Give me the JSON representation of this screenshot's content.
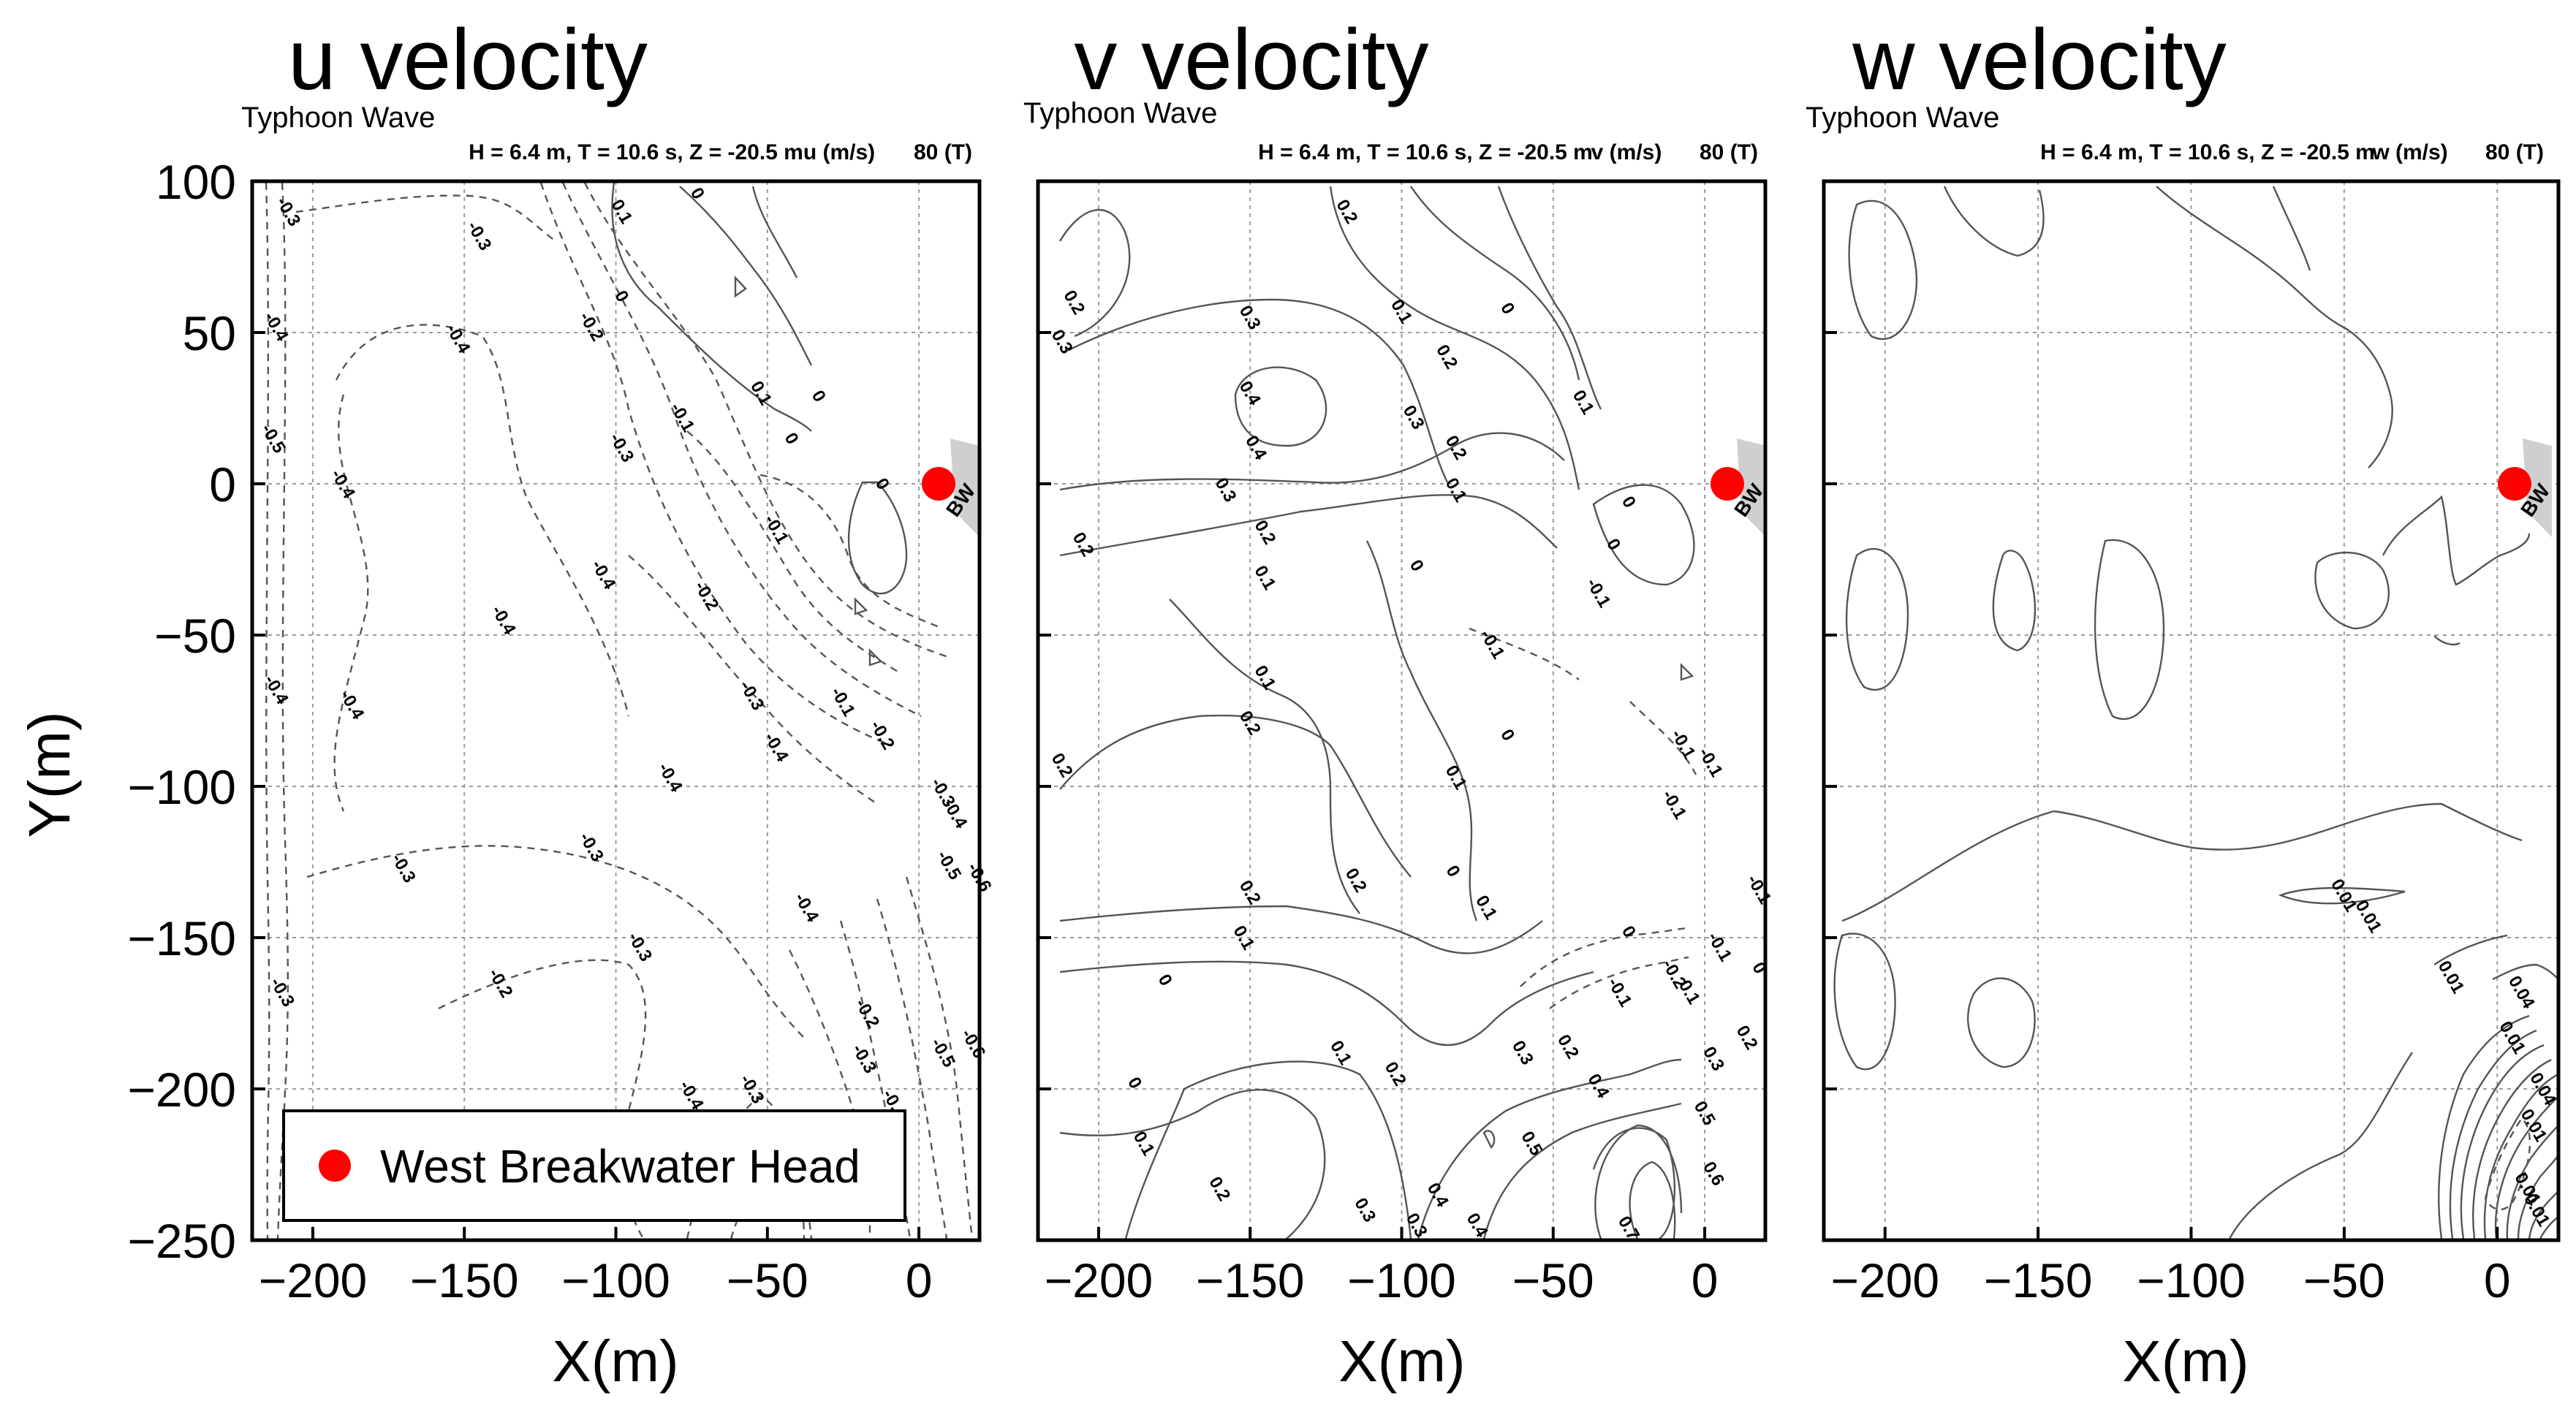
{
  "chart_data": [
    {
      "type": "contour",
      "title": "u velocity",
      "subtitle": "Typhoon Wave",
      "header": "H = 6.4 m,  T = 10.6 s,  Z = -20.5 m",
      "variable": "u (m/s)",
      "frame": "80 (T)",
      "xlabel": "X(m)",
      "ylabel": "Y(m)",
      "xlim": [
        -220,
        20
      ],
      "ylim": [
        -250,
        100
      ],
      "xticks": [
        -200,
        -150,
        -100,
        -50,
        0
      ],
      "yticks": [
        100,
        50,
        0,
        -50,
        -100,
        -150,
        -200,
        -250
      ],
      "xtick_labels": [
        "−200",
        "−150",
        "−100",
        "−50",
        "0"
      ],
      "ytick_labels": [
        "100",
        "50",
        "0",
        "−50",
        "−100",
        "−150",
        "−200",
        "−250"
      ],
      "marker_label": "BW",
      "contour_labels": [
        {
          "text": "-0.3",
          "x": -208,
          "y": 90
        },
        {
          "text": "-0.3",
          "x": -145,
          "y": 82
        },
        {
          "text": "0.1",
          "x": -98,
          "y": 90
        },
        {
          "text": "0",
          "x": -73,
          "y": 96
        },
        {
          "text": "-0.4",
          "x": -212,
          "y": 52
        },
        {
          "text": "-0.4",
          "x": -152,
          "y": 48
        },
        {
          "text": "0",
          "x": -98,
          "y": 62
        },
        {
          "text": "-0.2",
          "x": -108,
          "y": 52
        },
        {
          "text": "0.1",
          "x": -52,
          "y": 30
        },
        {
          "text": "0",
          "x": -33,
          "y": 29
        },
        {
          "text": "-0.1",
          "x": -78,
          "y": 22
        },
        {
          "text": "0",
          "x": -42,
          "y": 15
        },
        {
          "text": "-0.5",
          "x": -213,
          "y": 15
        },
        {
          "text": "-0.3",
          "x": -98,
          "y": 12
        },
        {
          "text": "-0.4",
          "x": -190,
          "y": 0
        },
        {
          "text": "0",
          "x": -12,
          "y": 0
        },
        {
          "text": "-0.1",
          "x": -47,
          "y": -15
        },
        {
          "text": "-0.4",
          "x": -104,
          "y": -30
        },
        {
          "text": "-0.2",
          "x": -70,
          "y": -37
        },
        {
          "text": "-0.4",
          "x": -137,
          "y": -45
        },
        {
          "text": "-0.4",
          "x": -212,
          "y": -68
        },
        {
          "text": "-0.4",
          "x": -187,
          "y": -73
        },
        {
          "text": "-0.3",
          "x": -55,
          "y": -70
        },
        {
          "text": "-0.1",
          "x": -25,
          "y": -72
        },
        {
          "text": "-0.4",
          "x": -47,
          "y": -87
        },
        {
          "text": "-0.2",
          "x": -12,
          "y": -83
        },
        {
          "text": "-0.4",
          "x": -82,
          "y": -97
        },
        {
          "text": "-0.3",
          "x": 8,
          "y": -102
        },
        {
          "text": "-0.4",
          "x": 12,
          "y": -109
        },
        {
          "text": "-0.3",
          "x": -170,
          "y": -127
        },
        {
          "text": "-0.3",
          "x": -108,
          "y": -120
        },
        {
          "text": "-0.4",
          "x": -37,
          "y": -140
        },
        {
          "text": "-0.5",
          "x": 10,
          "y": -126
        },
        {
          "text": "-0.6",
          "x": 20,
          "y": -130
        },
        {
          "text": "-0.3",
          "x": -92,
          "y": -153
        },
        {
          "text": "-0.2",
          "x": -138,
          "y": -165
        },
        {
          "text": "-0.3",
          "x": -210,
          "y": -168
        },
        {
          "text": "-0.2",
          "x": -17,
          "y": -175
        },
        {
          "text": "-0.3",
          "x": -18,
          "y": -190
        },
        {
          "text": "-0.5",
          "x": 8,
          "y": -188
        },
        {
          "text": "-0.6",
          "x": 18,
          "y": -185
        },
        {
          "text": "-0.4",
          "x": -75,
          "y": -202
        },
        {
          "text": "-0.3",
          "x": -55,
          "y": -200
        },
        {
          "text": "-0.4",
          "x": -8,
          "y": -205
        }
      ]
    },
    {
      "type": "contour",
      "title": "v velocity",
      "subtitle": "Typhoon Wave",
      "header": "H = 6.4 m,  T = 10.6 s,  Z = -20.5 m",
      "variable": "v (m/s)",
      "frame": "80 (T)",
      "xlabel": "X(m)",
      "ylabel": "",
      "xlim": [
        -220,
        20
      ],
      "ylim": [
        -250,
        100
      ],
      "xticks": [
        -200,
        -150,
        -100,
        -50,
        0
      ],
      "yticks": [
        100,
        50,
        0,
        -50,
        -100,
        -150,
        -200,
        -250
      ],
      "xtick_labels": [
        "−200",
        "−150",
        "−100",
        "−50",
        "0"
      ],
      "marker_label": "BW",
      "contour_labels": [
        {
          "text": "0.2",
          "x": -118,
          "y": 90
        },
        {
          "text": "0.2",
          "x": -208,
          "y": 60
        },
        {
          "text": "0.3",
          "x": -212,
          "y": 47
        },
        {
          "text": "0.3",
          "x": -150,
          "y": 55
        },
        {
          "text": "0.1",
          "x": -100,
          "y": 57
        },
        {
          "text": "0",
          "x": -65,
          "y": 58
        },
        {
          "text": "0.2",
          "x": -85,
          "y": 42
        },
        {
          "text": "0.4",
          "x": -150,
          "y": 30
        },
        {
          "text": "0.3",
          "x": -96,
          "y": 22
        },
        {
          "text": "0.1",
          "x": -40,
          "y": 27
        },
        {
          "text": "0.4",
          "x": -148,
          "y": 12
        },
        {
          "text": "0.2",
          "x": -82,
          "y": 12
        },
        {
          "text": "0.3",
          "x": -158,
          "y": -2
        },
        {
          "text": "0.1",
          "x": -82,
          "y": -2
        },
        {
          "text": "0",
          "x": -25,
          "y": -6
        },
        {
          "text": "0.2",
          "x": -145,
          "y": -16
        },
        {
          "text": "0.2",
          "x": -205,
          "y": -20
        },
        {
          "text": "0",
          "x": -30,
          "y": -20
        },
        {
          "text": "0",
          "x": -95,
          "y": -27
        },
        {
          "text": "0.1",
          "x": -145,
          "y": -31
        },
        {
          "text": "-0.1",
          "x": -35,
          "y": -36
        },
        {
          "text": "-0.1",
          "x": -70,
          "y": -53
        },
        {
          "text": "0.1",
          "x": -145,
          "y": -64
        },
        {
          "text": "0.2",
          "x": -150,
          "y": -79
        },
        {
          "text": "0",
          "x": -65,
          "y": -83
        },
        {
          "text": "-0.1",
          "x": -7,
          "y": -86
        },
        {
          "text": "-0.1",
          "x": 2,
          "y": -92
        },
        {
          "text": "0.2",
          "x": -212,
          "y": -93
        },
        {
          "text": "0.1",
          "x": -82,
          "y": -97
        },
        {
          "text": "-0.1",
          "x": -10,
          "y": -106
        },
        {
          "text": "0.2",
          "x": -115,
          "y": -131
        },
        {
          "text": "0",
          "x": -83,
          "y": -128
        },
        {
          "text": "0.2",
          "x": -150,
          "y": -135
        },
        {
          "text": "0.1",
          "x": -72,
          "y": -140
        },
        {
          "text": "0.1",
          "x": -152,
          "y": -150
        },
        {
          "text": "0",
          "x": -25,
          "y": -148
        },
        {
          "text": "-0.1",
          "x": 18,
          "y": -134
        },
        {
          "text": "-0.1",
          "x": 5,
          "y": -153
        },
        {
          "text": "0",
          "x": 18,
          "y": -160
        },
        {
          "text": "-0.2",
          "x": -10,
          "y": -162
        },
        {
          "text": "-0.1",
          "x": -28,
          "y": -168
        },
        {
          "text": "0.1",
          "x": -5,
          "y": -168
        },
        {
          "text": "0",
          "x": -178,
          "y": -164
        },
        {
          "text": "0.2",
          "x": 14,
          "y": -183
        },
        {
          "text": "0.3",
          "x": 3,
          "y": -190
        },
        {
          "text": "0.1",
          "x": -120,
          "y": -188
        },
        {
          "text": "0.3",
          "x": -60,
          "y": -188
        },
        {
          "text": "0.2",
          "x": -45,
          "y": -186
        },
        {
          "text": "0",
          "x": -188,
          "y": -198
        },
        {
          "text": "0.2",
          "x": -102,
          "y": -195
        },
        {
          "text": "0.4",
          "x": -35,
          "y": -199
        },
        {
          "text": "0.5",
          "x": 0,
          "y": -208
        },
        {
          "text": "0.1",
          "x": -185,
          "y": -218
        },
        {
          "text": "0.5",
          "x": -57,
          "y": -218
        },
        {
          "text": "0.6",
          "x": 3,
          "y": -228
        },
        {
          "text": "0.2",
          "x": -160,
          "y": -233
        },
        {
          "text": "0.3",
          "x": -112,
          "y": -240
        },
        {
          "text": "0.4",
          "x": -88,
          "y": -235
        },
        {
          "text": "0.3",
          "x": -95,
          "y": -245
        },
        {
          "text": "0.4",
          "x": -75,
          "y": -245
        },
        {
          "text": "0.7",
          "x": -25,
          "y": -246
        }
      ]
    },
    {
      "type": "contour",
      "title": "w velocity",
      "subtitle": "Typhoon Wave",
      "header": "H = 6.4 m,  T = 10.6 s,  Z = -20.5 m",
      "variable": "w (m/s)",
      "frame": "80 (T)",
      "xlabel": "X(m)",
      "ylabel": "",
      "xlim": [
        -220,
        20
      ],
      "ylim": [
        -250,
        100
      ],
      "xticks": [
        -200,
        -150,
        -100,
        -50,
        0
      ],
      "yticks": [
        100,
        50,
        0,
        -50,
        -100,
        -150,
        -200,
        -250
      ],
      "xtick_labels": [
        "−200",
        "−150",
        "−100",
        "−50",
        "0"
      ],
      "marker_label": "BW",
      "contour_labels": [
        {
          "text": "0.01",
          "x": -50,
          "y": -136
        },
        {
          "text": "0.01",
          "x": -42,
          "y": -143
        },
        {
          "text": "0.01",
          "x": -15,
          "y": -163
        },
        {
          "text": "0.04",
          "x": 8,
          "y": -168
        },
        {
          "text": "0.01",
          "x": 5,
          "y": -183
        },
        {
          "text": "0.04",
          "x": 15,
          "y": -200
        },
        {
          "text": "0.01",
          "x": 12,
          "y": -212
        },
        {
          "text": "0.01",
          "x": 10,
          "y": -233
        },
        {
          "text": "0.01",
          "x": 13,
          "y": -240
        }
      ]
    }
  ],
  "legend": {
    "label": "West Breakwater Head",
    "marker_color": "#ff0000"
  },
  "colors": {
    "marker": "#ff0000",
    "contour": "#555555",
    "grid": "#9a9a9a",
    "breakwater": "#cfcfcf"
  }
}
